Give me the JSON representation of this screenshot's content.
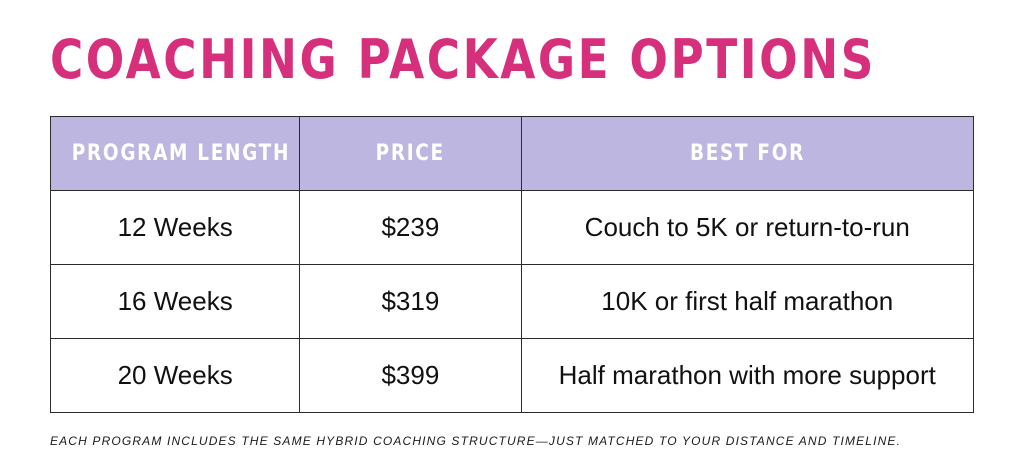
{
  "title": "COACHING PACKAGE OPTIONS",
  "table": {
    "headers": [
      "PROGRAM LENGTH",
      "PRICE",
      "BEST FOR"
    ],
    "rows": [
      [
        "12 Weeks",
        "$239",
        "Couch to 5K or return-to-run"
      ],
      [
        "16 Weeks",
        "$319",
        "10K or first half marathon"
      ],
      [
        "20 Weeks",
        "$399",
        "Half marathon with more support"
      ]
    ]
  },
  "footnote": "EACH PROGRAM INCLUDES THE SAME HYBRID COACHING STRUCTURE—JUST MATCHED TO YOUR DISTANCE AND TIMELINE.",
  "colors": {
    "title": "#d6307c",
    "header_bg": "#bcb6e0",
    "header_text": "#ffffff",
    "border": "#2b2b2b"
  }
}
